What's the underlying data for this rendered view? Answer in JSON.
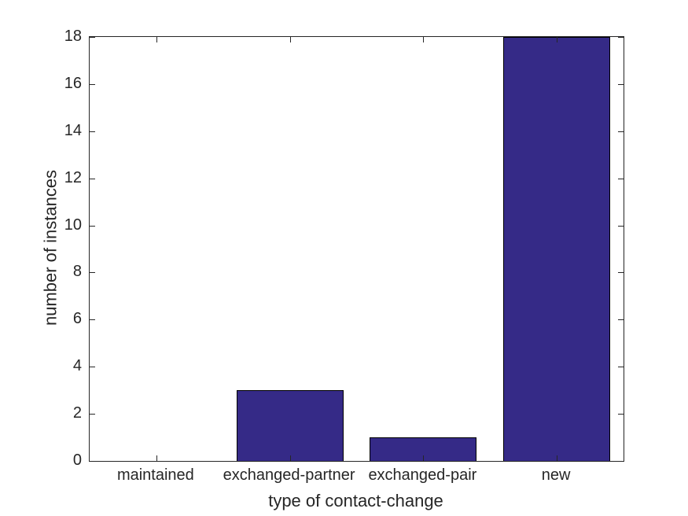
{
  "figure": {
    "background_color": "#ffffff"
  },
  "chart_data": {
    "type": "bar",
    "title": "",
    "xlabel": "type of contact-change",
    "ylabel": "number of instances",
    "categories": [
      "maintained",
      "exchanged-partner",
      "exchanged-pair",
      "new"
    ],
    "values": [
      0,
      3,
      1,
      18
    ],
    "ylim": [
      0,
      18
    ],
    "yticks": [
      0,
      2,
      4,
      6,
      8,
      10,
      12,
      14,
      16,
      18
    ],
    "bar_relative_width": 0.8,
    "bar_color": "#352a87",
    "bar_edge_color": "#000000",
    "axis_color": "#262626",
    "text_color": "#262626",
    "grid": false,
    "legend": null,
    "box": true,
    "tick_direction": "in"
  }
}
